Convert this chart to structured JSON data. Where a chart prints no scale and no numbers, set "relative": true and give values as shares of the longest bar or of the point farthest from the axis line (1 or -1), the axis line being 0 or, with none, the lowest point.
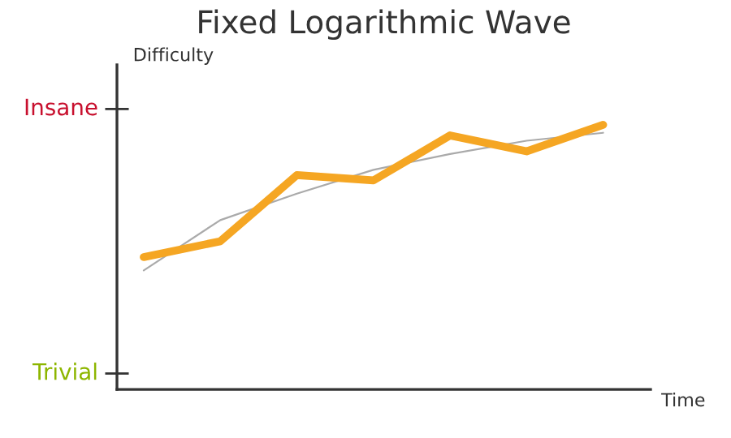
{
  "chart_data": {
    "type": "line",
    "title": "Fixed Logarithmic Wave",
    "xlabel": "Time",
    "ylabel": "Difficulty",
    "relative": true,
    "categories": [
      null,
      null,
      null,
      null,
      null,
      null,
      null
    ],
    "series": [
      {
        "color": "#aaaaaa",
        "values": [
          0.45,
          0.64,
          0.74,
          0.83,
          0.89,
          0.94,
          0.97
        ]
      },
      {
        "color": "#f5a623",
        "values": [
          0.5,
          0.56,
          0.81,
          0.79,
          0.96,
          0.9,
          1
        ]
      }
    ],
    "annotations": [
      "Trivial",
      "Insane"
    ],
    "grid": false,
    "legend": false,
    "marker": "none",
    "line_style": "solid"
  }
}
